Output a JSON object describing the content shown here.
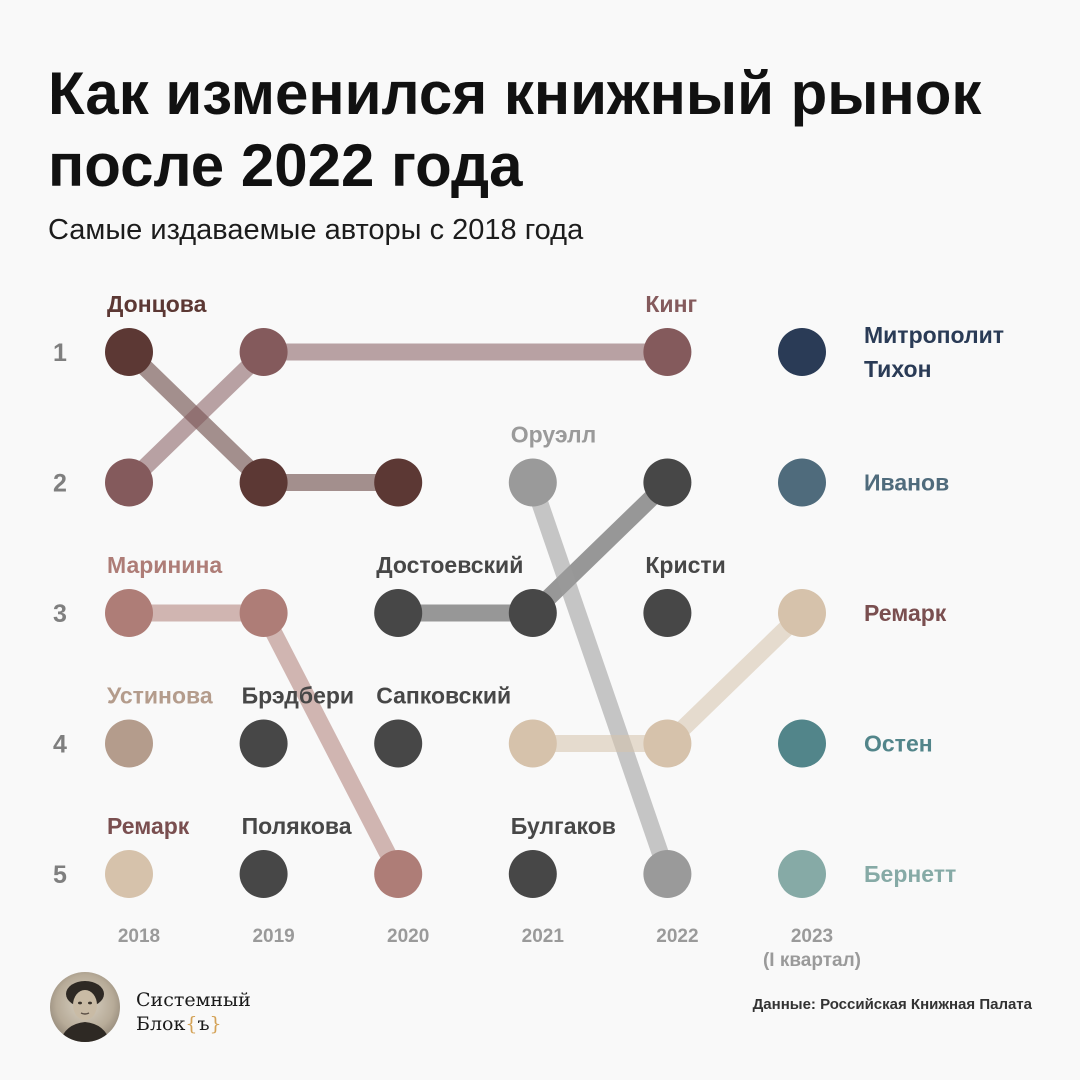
{
  "title": "Как изменился книжный рынок после 2022 года",
  "subtitle": "Самые издаваемые авторы с 2018 года",
  "source": "Данные: Российская Книжная Палата",
  "brand": {
    "line1": "Системный",
    "line2": "Блок",
    "brace_open": "{",
    "brace_letter": "ъ",
    "brace_close": "}"
  },
  "chart_data": {
    "type": "bump",
    "years": [
      "2018",
      "2019",
      "2020",
      "2021",
      "2022",
      "2023"
    ],
    "year_notes": [
      "",
      "",
      "",
      "",
      "",
      "(I квартал)"
    ],
    "ranks": [
      "1",
      "2",
      "3",
      "4",
      "5"
    ],
    "colors": {
      "Донцова": "#5c3834",
      "Кинг": "#845a5c",
      "Маринина": "#ae7d77",
      "Устинова": "#b49c8c",
      "Ремарк": "#d6c2ab",
      "Оруэлл": "#9a9a9a",
      "dark": "#474747",
      "Митрополит Тихон": "#2a3b56",
      "Иванов": "#4f6b7c",
      "Остен": "#52858a",
      "Бернетт": "#86aaa6"
    },
    "label_colors": {
      "Донцова": "#5c3834",
      "Кинг": "#845a5c",
      "Маринина": "#ae7d77",
      "Устинова": "#b49c8c",
      "Ремарк": "#7a4f50",
      "Оруэлл": "#9a9a9a",
      "dark": "#474747",
      "Митрополит Тихон": "#2a3b56",
      "Иванов": "#4f6b7c",
      "Остен": "#52858a",
      "Бернетт": "#86aaa6"
    },
    "series": [
      {
        "name": "Донцова",
        "color_key": "Донцова",
        "points": [
          [
            0,
            1
          ],
          [
            1,
            2
          ],
          [
            2,
            2
          ]
        ]
      },
      {
        "name": "Кинг",
        "color_key": "Кинг",
        "points": [
          [
            0,
            2
          ],
          [
            1,
            1
          ],
          [
            4,
            1
          ]
        ]
      },
      {
        "name": "Маринина",
        "color_key": "Маринина",
        "points": [
          [
            0,
            3
          ],
          [
            1,
            3
          ],
          [
            2,
            5
          ]
        ]
      },
      {
        "name": "Устинова",
        "color_key": "Устинова",
        "points": [
          [
            0,
            4
          ]
        ]
      },
      {
        "name": "Ремарк",
        "color_key": "Ремарк",
        "points": [
          [
            0,
            5
          ]
        ]
      },
      {
        "name": "Брэдбери",
        "color_key": "dark",
        "points": [
          [
            1,
            4
          ]
        ]
      },
      {
        "name": "Полякова",
        "color_key": "dark",
        "points": [
          [
            1,
            5
          ]
        ]
      },
      {
        "name": "Достоевский",
        "color_key": "dark",
        "points": [
          [
            2,
            3
          ],
          [
            3,
            3
          ],
          [
            4,
            2
          ]
        ]
      },
      {
        "name": "Сапковский",
        "color_key": "dark",
        "points": [
          [
            2,
            4
          ]
        ]
      },
      {
        "name": "Оруэлл",
        "color_key": "Оруэлл",
        "points": [
          [
            3,
            2
          ],
          [
            4,
            5
          ]
        ]
      },
      {
        "name": "Ремарк",
        "color_key": "Ремарк",
        "points": [
          [
            3,
            4
          ],
          [
            4,
            4
          ],
          [
            5,
            3
          ]
        ]
      },
      {
        "name": "Булгаков",
        "color_key": "dark",
        "points": [
          [
            3,
            5
          ]
        ]
      },
      {
        "name": "Кристи",
        "color_key": "dark",
        "points": [
          [
            4,
            3
          ]
        ]
      },
      {
        "name": "Митрополит Тихон",
        "color_key": "Митрополит Тихон",
        "points": [
          [
            5,
            1
          ]
        ]
      },
      {
        "name": "Иванов",
        "color_key": "Иванов",
        "points": [
          [
            5,
            2
          ]
        ]
      },
      {
        "name": "Остен",
        "color_key": "Остен",
        "points": [
          [
            5,
            4
          ]
        ]
      },
      {
        "name": "Бернетт",
        "color_key": "Бернетт",
        "points": [
          [
            5,
            5
          ]
        ]
      }
    ],
    "labels": [
      {
        "text": "Донцова",
        "color_key": "Донцова",
        "year": 0,
        "rank": 1,
        "pos": "above"
      },
      {
        "text": "Кинг",
        "color_key": "Кинг",
        "year": 4,
        "rank": 1,
        "pos": "above"
      },
      {
        "text": "Маринина",
        "color_key": "Маринина",
        "year": 0,
        "rank": 3,
        "pos": "above"
      },
      {
        "text": "Устинова",
        "color_key": "Устинова",
        "year": 0,
        "rank": 4,
        "pos": "above"
      },
      {
        "text": "Ремарк",
        "color_key": "Ремарк",
        "year": 0,
        "rank": 5,
        "pos": "above"
      },
      {
        "text": "Брэдбери",
        "color_key": "dark",
        "year": 1,
        "rank": 4,
        "pos": "above"
      },
      {
        "text": "Полякова",
        "color_key": "dark",
        "year": 1,
        "rank": 5,
        "pos": "above"
      },
      {
        "text": "Достоевский",
        "color_key": "dark",
        "year": 2,
        "rank": 3,
        "pos": "above"
      },
      {
        "text": "Сапковский",
        "color_key": "dark",
        "year": 2,
        "rank": 4,
        "pos": "above"
      },
      {
        "text": "Оруэлл",
        "color_key": "Оруэлл",
        "year": 3,
        "rank": 2,
        "pos": "above"
      },
      {
        "text": "Булгаков",
        "color_key": "dark",
        "year": 3,
        "rank": 5,
        "pos": "above"
      },
      {
        "text": "Кристи",
        "color_key": "dark",
        "year": 4,
        "rank": 3,
        "pos": "above"
      },
      {
        "text": "Митрополит Тихон",
        "lines": [
          "Митрополит",
          "Тихон"
        ],
        "color_key": "Митрополит Тихон",
        "year": 5,
        "rank": 1,
        "pos": "right"
      },
      {
        "text": "Иванов",
        "color_key": "Иванов",
        "year": 5,
        "rank": 2,
        "pos": "right"
      },
      {
        "text": "Ремарк",
        "color_key": "Ремарк",
        "year": 5,
        "rank": 3,
        "pos": "right"
      },
      {
        "text": "Остен",
        "color_key": "Остен",
        "year": 5,
        "rank": 4,
        "pos": "right"
      },
      {
        "text": "Бернетт",
        "color_key": "Бернетт",
        "year": 5,
        "rank": 5,
        "pos": "right"
      }
    ]
  }
}
